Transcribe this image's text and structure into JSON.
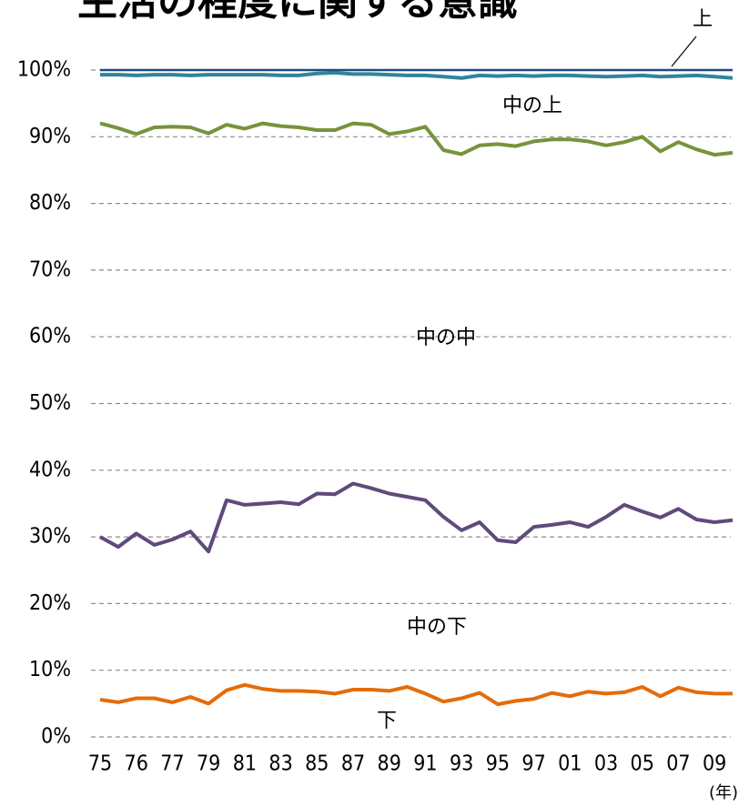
{
  "chart_data": {
    "type": "stacked_line",
    "title": "生活の程度に関する意識",
    "x_label": "(年)",
    "categories": [
      "75",
      null,
      "76",
      null,
      "77",
      null,
      "79",
      null,
      "81",
      null,
      "83",
      null,
      "85",
      null,
      "87",
      null,
      "89",
      null,
      "91",
      null,
      "93",
      null,
      "95",
      null,
      "97",
      null,
      "01",
      null,
      "03",
      null,
      "05",
      null,
      "07",
      null,
      "09",
      null
    ],
    "ylim": [
      0,
      100
    ],
    "yticks": [
      {
        "value": 0,
        "label": "0%"
      },
      {
        "value": 10,
        "label": "10%"
      },
      {
        "value": 20,
        "label": "20%"
      },
      {
        "value": 30,
        "label": "30%"
      },
      {
        "value": 40,
        "label": "40%"
      },
      {
        "value": 50,
        "label": "50%"
      },
      {
        "value": 60,
        "label": "60%"
      },
      {
        "value": 70,
        "label": "70%"
      },
      {
        "value": 80,
        "label": "80%"
      },
      {
        "value": 90,
        "label": "90%"
      },
      {
        "value": 100,
        "label": "100%"
      }
    ],
    "grid": true,
    "series": [
      {
        "name": "下",
        "color": "#e46c0a",
        "values": [
          5.6,
          5.2,
          5.8,
          5.8,
          5.2,
          6.0,
          5.0,
          7.0,
          7.8,
          7.2,
          6.9,
          6.9,
          6.8,
          6.5,
          7.1,
          7.1,
          6.9,
          7.5,
          6.5,
          5.3,
          5.8,
          6.6,
          4.9,
          5.4,
          5.7,
          6.6,
          6.1,
          6.8,
          6.5,
          6.7,
          7.5,
          6.1,
          7.4,
          6.7,
          6.5,
          6.5
        ]
      },
      {
        "name": "中の下",
        "color": "#604a7b",
        "values": [
          24.4,
          23.3,
          24.7,
          23.0,
          24.4,
          24.8,
          22.8,
          28.5,
          27.0,
          27.8,
          28.3,
          28.0,
          29.7,
          29.9,
          30.9,
          30.2,
          29.6,
          28.5,
          29.0,
          27.7,
          25.2,
          25.6,
          24.6,
          23.8,
          25.8,
          25.2,
          26.1,
          24.7,
          26.5,
          28.1,
          26.3,
          26.8,
          26.8,
          25.9,
          25.7,
          26.0
        ]
      },
      {
        "name": "中の中",
        "color": "#77933c",
        "values": [
          62,
          62.8,
          59.9,
          62.6,
          61.9,
          60.6,
          62.7,
          56.3,
          56.4,
          57,
          56.4,
          56.5,
          54.5,
          54.6,
          54,
          54.5,
          53.9,
          54.8,
          56,
          55,
          56.4,
          56.5,
          59.4,
          59.4,
          57.8,
          57.8,
          57.4,
          57.8,
          55.7,
          54.4,
          56.2,
          54.9,
          55,
          55.5,
          55.1,
          55.1
        ]
      },
      {
        "name": "中の上",
        "color": "#31859c",
        "values": [
          7.3,
          8.0,
          8.8,
          7.9,
          7.8,
          7.8,
          8.8,
          7.5,
          8.1,
          7.3,
          7.6,
          7.8,
          8.5,
          8.6,
          7.4,
          7.6,
          8.9,
          8.4,
          7.7,
          11,
          11.4,
          10.5,
          10.2,
          10.6,
          9.8,
          9.6,
          9.6,
          9.8,
          10.3,
          9.9,
          9.2,
          11.2,
          9.9,
          11.1,
          11.7,
          11.2
        ]
      },
      {
        "name": "上",
        "color": "#1f497d",
        "values": [
          0.7,
          0.7,
          0.8,
          0.7,
          0.7,
          0.8,
          0.7,
          0.7,
          0.7,
          0.7,
          0.8,
          0.8,
          0.5,
          0.4,
          0.6,
          0.6,
          0.7,
          0.8,
          0.8,
          1.0,
          1.2,
          0.8,
          0.9,
          0.8,
          0.9,
          0.8,
          0.8,
          0.9,
          1.0,
          0.9,
          0.8,
          1.0,
          0.9,
          0.8,
          1.0,
          1.2
        ]
      }
    ]
  }
}
